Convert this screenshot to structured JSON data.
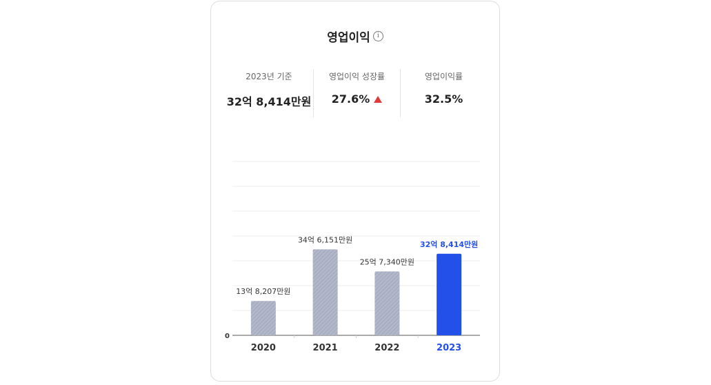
{
  "card": {
    "title": "영업이익",
    "info_icon": "info-icon"
  },
  "stats": [
    {
      "label": "2023년 기준",
      "value": "32억 8,414만원"
    },
    {
      "label": "영업이익 성장률",
      "value": "27.6%",
      "trend": "up"
    },
    {
      "label": "영업이익률",
      "value": "32.5%"
    }
  ],
  "colors": {
    "highlight": "#2350e8",
    "bar_default": "#a9b0c3",
    "trend_up": "#e03a3a"
  },
  "chart_data": {
    "type": "bar",
    "categories": [
      "2020",
      "2021",
      "2022",
      "2023"
    ],
    "values": [
      138207,
      346151,
      257340,
      328414
    ],
    "value_unit": "만원",
    "data_labels": [
      "13억 8,207만원",
      "34억 6,151만원",
      "25억 7,340만원",
      "32억 8,414만원"
    ],
    "y_tick_labels": [
      "0"
    ],
    "ylim": [
      0,
      700000
    ],
    "grid": true,
    "highlight_index": 3
  }
}
